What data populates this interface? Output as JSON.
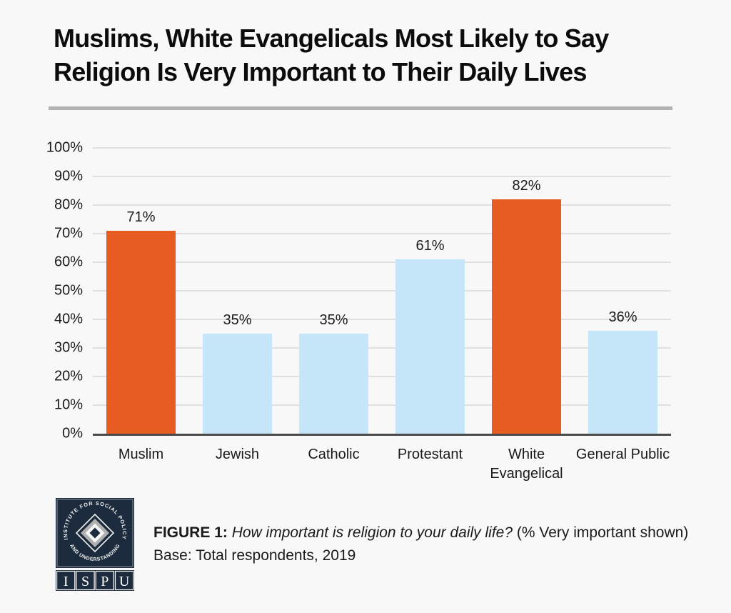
{
  "title_lines": [
    "Muslims, White Evangelicals Most Likely to Say",
    "Religion Is Very Important to Their Daily Lives"
  ],
  "colors": {
    "background": "#f8f8f8",
    "text": "#1a1a1a",
    "divider": "#b2b2b2",
    "grid": "#e0e0e0",
    "baseline": "#4b4b4b",
    "highlight": "#e65c23",
    "base": "#c5e5f8",
    "logo_navy": "#1c2b3d",
    "logo_silver": "#b0b0b0"
  },
  "chart_data": {
    "type": "bar",
    "title": "Muslims, White Evangelicals Most Likely to Say Religion Is Very Important to Their Daily Lives",
    "categories": [
      "Muslim",
      "Jewish",
      "Catholic",
      "Protestant",
      "White Evangelical",
      "General Public"
    ],
    "values": [
      71,
      35,
      35,
      61,
      82,
      36
    ],
    "value_labels": [
      "71%",
      "35%",
      "35%",
      "61%",
      "82%",
      "36%"
    ],
    "highlighted": [
      true,
      false,
      false,
      false,
      true,
      false
    ],
    "bar_color_highlight": "#e65c23",
    "bar_color_base": "#c5e5f8",
    "y_ticks": [
      "0%",
      "10%",
      "20%",
      "30%",
      "40%",
      "50%",
      "60%",
      "70%",
      "80%",
      "90%",
      "100%"
    ],
    "ylim": [
      0,
      100
    ],
    "xlabel": "",
    "ylabel": "",
    "grid": true,
    "legend": "none"
  },
  "footer": {
    "figure_label": "FIGURE 1:",
    "question": "How important is religion to your daily life?",
    "detail": "(% Very important shown) Base: Total respondents, 2019",
    "logo": {
      "arc_top": "INSTITUTE FOR SOCIAL POLICY",
      "arc_bottom": "AND UNDERSTANDING",
      "acronym": [
        "I",
        "S",
        "P",
        "U"
      ]
    }
  }
}
